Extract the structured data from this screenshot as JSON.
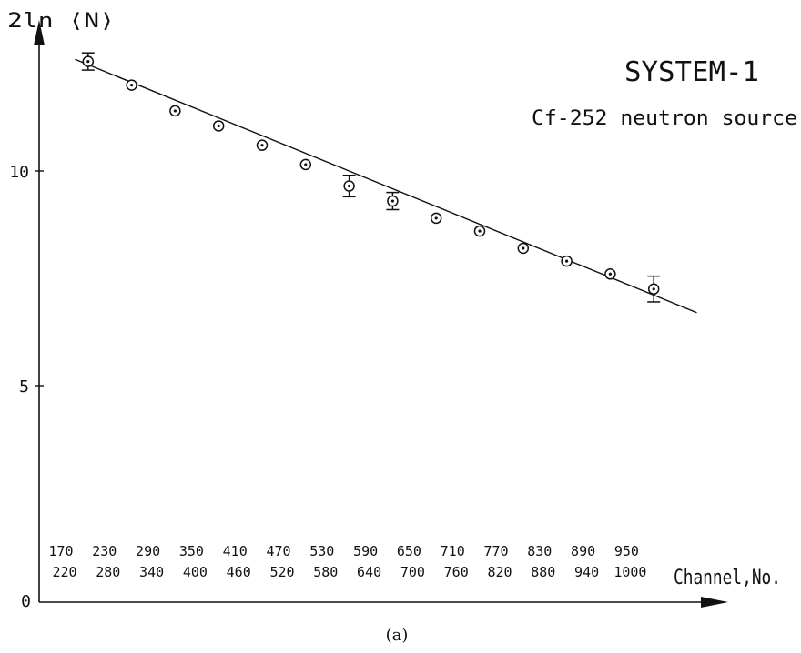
{
  "chart_data": {
    "type": "scatter",
    "title": "SYSTEM-1",
    "subtitle": "Cf-252  neutron source",
    "ylabel": "2ln ⟨N⟩",
    "xlabel": "Channel,No.",
    "caption": "(a)",
    "ylim": [
      0,
      13
    ],
    "y_ticks": [
      {
        "value": 0,
        "label": "0"
      },
      {
        "value": 5,
        "label": "5"
      },
      {
        "value": 10,
        "label": "10"
      }
    ],
    "channel_labels": [
      {
        "upper": "170",
        "lower": "220"
      },
      {
        "upper": "230",
        "lower": "280"
      },
      {
        "upper": "290",
        "lower": "340"
      },
      {
        "upper": "350",
        "lower": "400"
      },
      {
        "upper": "410",
        "lower": "460"
      },
      {
        "upper": "470",
        "lower": "520"
      },
      {
        "upper": "530",
        "lower": "580"
      },
      {
        "upper": "590",
        "lower": "640"
      },
      {
        "upper": "650",
        "lower": "700"
      },
      {
        "upper": "710",
        "lower": "760"
      },
      {
        "upper": "770",
        "lower": "820"
      },
      {
        "upper": "830",
        "lower": "880"
      },
      {
        "upper": "890",
        "lower": "940"
      },
      {
        "upper": "950",
        "lower": "1000"
      }
    ],
    "points": [
      {
        "bin": 1,
        "y": 12.55,
        "err": 0.2
      },
      {
        "bin": 2,
        "y": 12.0
      },
      {
        "bin": 3,
        "y": 11.4
      },
      {
        "bin": 4,
        "y": 11.05
      },
      {
        "bin": 5,
        "y": 10.6
      },
      {
        "bin": 6,
        "y": 10.15
      },
      {
        "bin": 7,
        "y": 9.65,
        "err": 0.25
      },
      {
        "bin": 8,
        "y": 9.3,
        "err": 0.2
      },
      {
        "bin": 9,
        "y": 8.9
      },
      {
        "bin": 10,
        "y": 8.6
      },
      {
        "bin": 11,
        "y": 8.2
      },
      {
        "bin": 12,
        "y": 7.9
      },
      {
        "bin": 13,
        "y": 7.6
      },
      {
        "bin": 14,
        "y": 7.25,
        "err": 0.3
      }
    ],
    "fit_line": {
      "bin_start": 0.7,
      "y_start": 12.6,
      "bin_end": 14.99,
      "y_end": 6.7
    },
    "legend": "none",
    "grid": false
  }
}
